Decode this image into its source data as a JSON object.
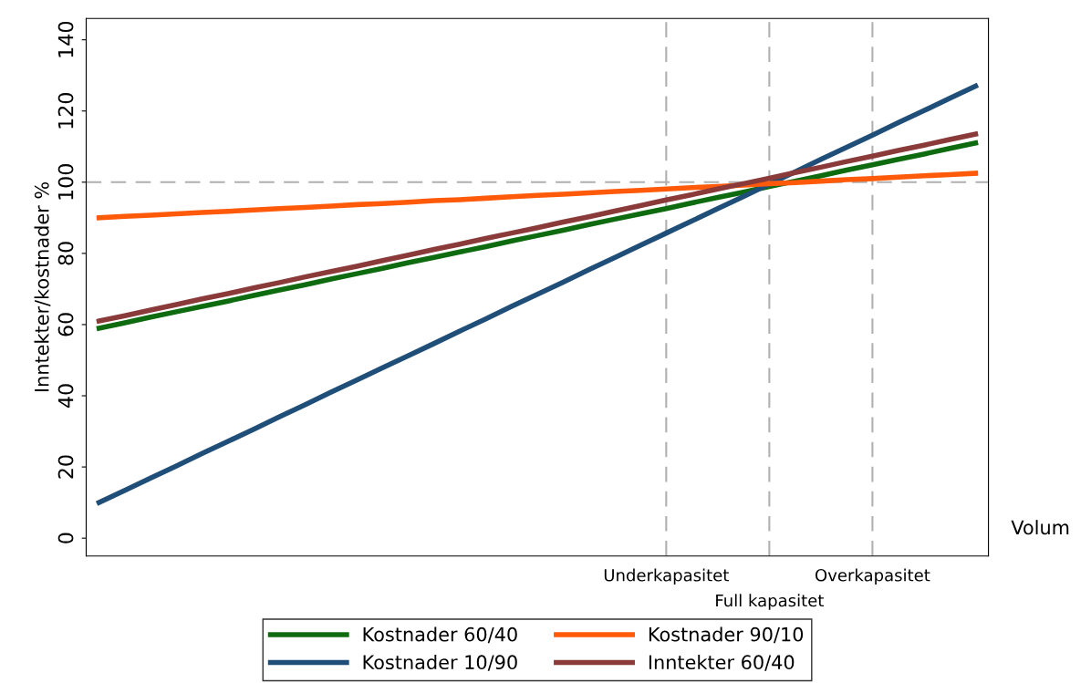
{
  "chart_data": {
    "type": "line",
    "ylabel": "Inntekter/kostnader %",
    "xlabel": "Volum",
    "categories": [
      null,
      null,
      null,
      null,
      null,
      null,
      null,
      null,
      null,
      null,
      null,
      null,
      null,
      null,
      null,
      null,
      null,
      null,
      null,
      null,
      null,
      null,
      "Underkapasitet",
      null,
      null,
      null,
      "Full kapasitet",
      null,
      null,
      null,
      "Overkapasitet",
      null,
      null,
      null,
      null
    ],
    "series": [
      {
        "name": "Kostnader 60/40",
        "color": "#0f6b0f",
        "values": [
          59,
          60.5,
          62.1,
          63.6,
          65.1,
          66.6,
          68.2,
          69.7,
          71.2,
          72.8,
          74.3,
          75.8,
          77.4,
          78.9,
          80.4,
          81.9,
          83.5,
          85.0,
          86.5,
          88.1,
          89.6,
          91.1,
          92.6,
          94.2,
          95.7,
          97.2,
          98.8,
          100.3,
          101.8,
          103.4,
          104.9,
          106.4,
          107.9,
          109.5,
          111
        ]
      },
      {
        "name": "Kostnader 10/90",
        "color": "#1f4e79",
        "values": [
          10,
          13.4,
          16.9,
          20.3,
          23.8,
          27.2,
          30.6,
          34.1,
          37.5,
          41.0,
          44.4,
          47.9,
          51.3,
          54.7,
          58.2,
          61.6,
          65.1,
          68.5,
          71.9,
          75.4,
          78.8,
          82.3,
          85.7,
          89.1,
          92.6,
          96.0,
          99.5,
          102.9,
          106.4,
          109.8,
          113.2,
          116.7,
          120.1,
          123.6,
          127
        ]
      },
      {
        "name": "Kostnader 90/10",
        "color": "#ff5a0a",
        "values": [
          90,
          90.4,
          90.7,
          91.1,
          91.5,
          91.8,
          92.2,
          92.6,
          92.9,
          93.3,
          93.7,
          94.0,
          94.4,
          94.8,
          95.1,
          95.5,
          95.9,
          96.3,
          96.6,
          97.0,
          97.4,
          97.7,
          98.1,
          98.5,
          98.8,
          99.2,
          99.6,
          99.9,
          100.3,
          100.7,
          101.0,
          101.4,
          101.8,
          102.1,
          102.5
        ]
      },
      {
        "name": "Inntekter 60/40",
        "color": "#8b3a3a",
        "values": [
          61,
          62.5,
          64.1,
          65.6,
          67.2,
          68.7,
          70.3,
          71.8,
          73.4,
          74.9,
          76.4,
          78.0,
          79.5,
          81.1,
          82.6,
          84.2,
          85.7,
          87.2,
          88.8,
          90.3,
          91.9,
          93.4,
          95.0,
          96.5,
          98.1,
          99.6,
          101.1,
          102.7,
          104.2,
          105.8,
          107.3,
          108.9,
          110.4,
          112.0,
          113.5
        ]
      }
    ],
    "ylim": [
      -5,
      146
    ],
    "yticks": [
      0,
      20,
      40,
      60,
      80,
      100,
      120,
      140
    ],
    "ref_lines": [
      {
        "axis": "x",
        "value": "Underkapasitet",
        "color": "#b0b0b0",
        "line_style": "dashed"
      },
      {
        "axis": "x",
        "value": "Full kapasitet",
        "color": "#b0b0b0",
        "line_style": "dashed"
      },
      {
        "axis": "x",
        "value": "Overkapasitet",
        "color": "#b0b0b0",
        "line_style": "dashed"
      },
      {
        "axis": "y",
        "value": 100,
        "color": "#b0b0b0",
        "line_style": "dashed"
      }
    ],
    "legend": "bottom",
    "marker": "none",
    "line_style": "solid"
  }
}
